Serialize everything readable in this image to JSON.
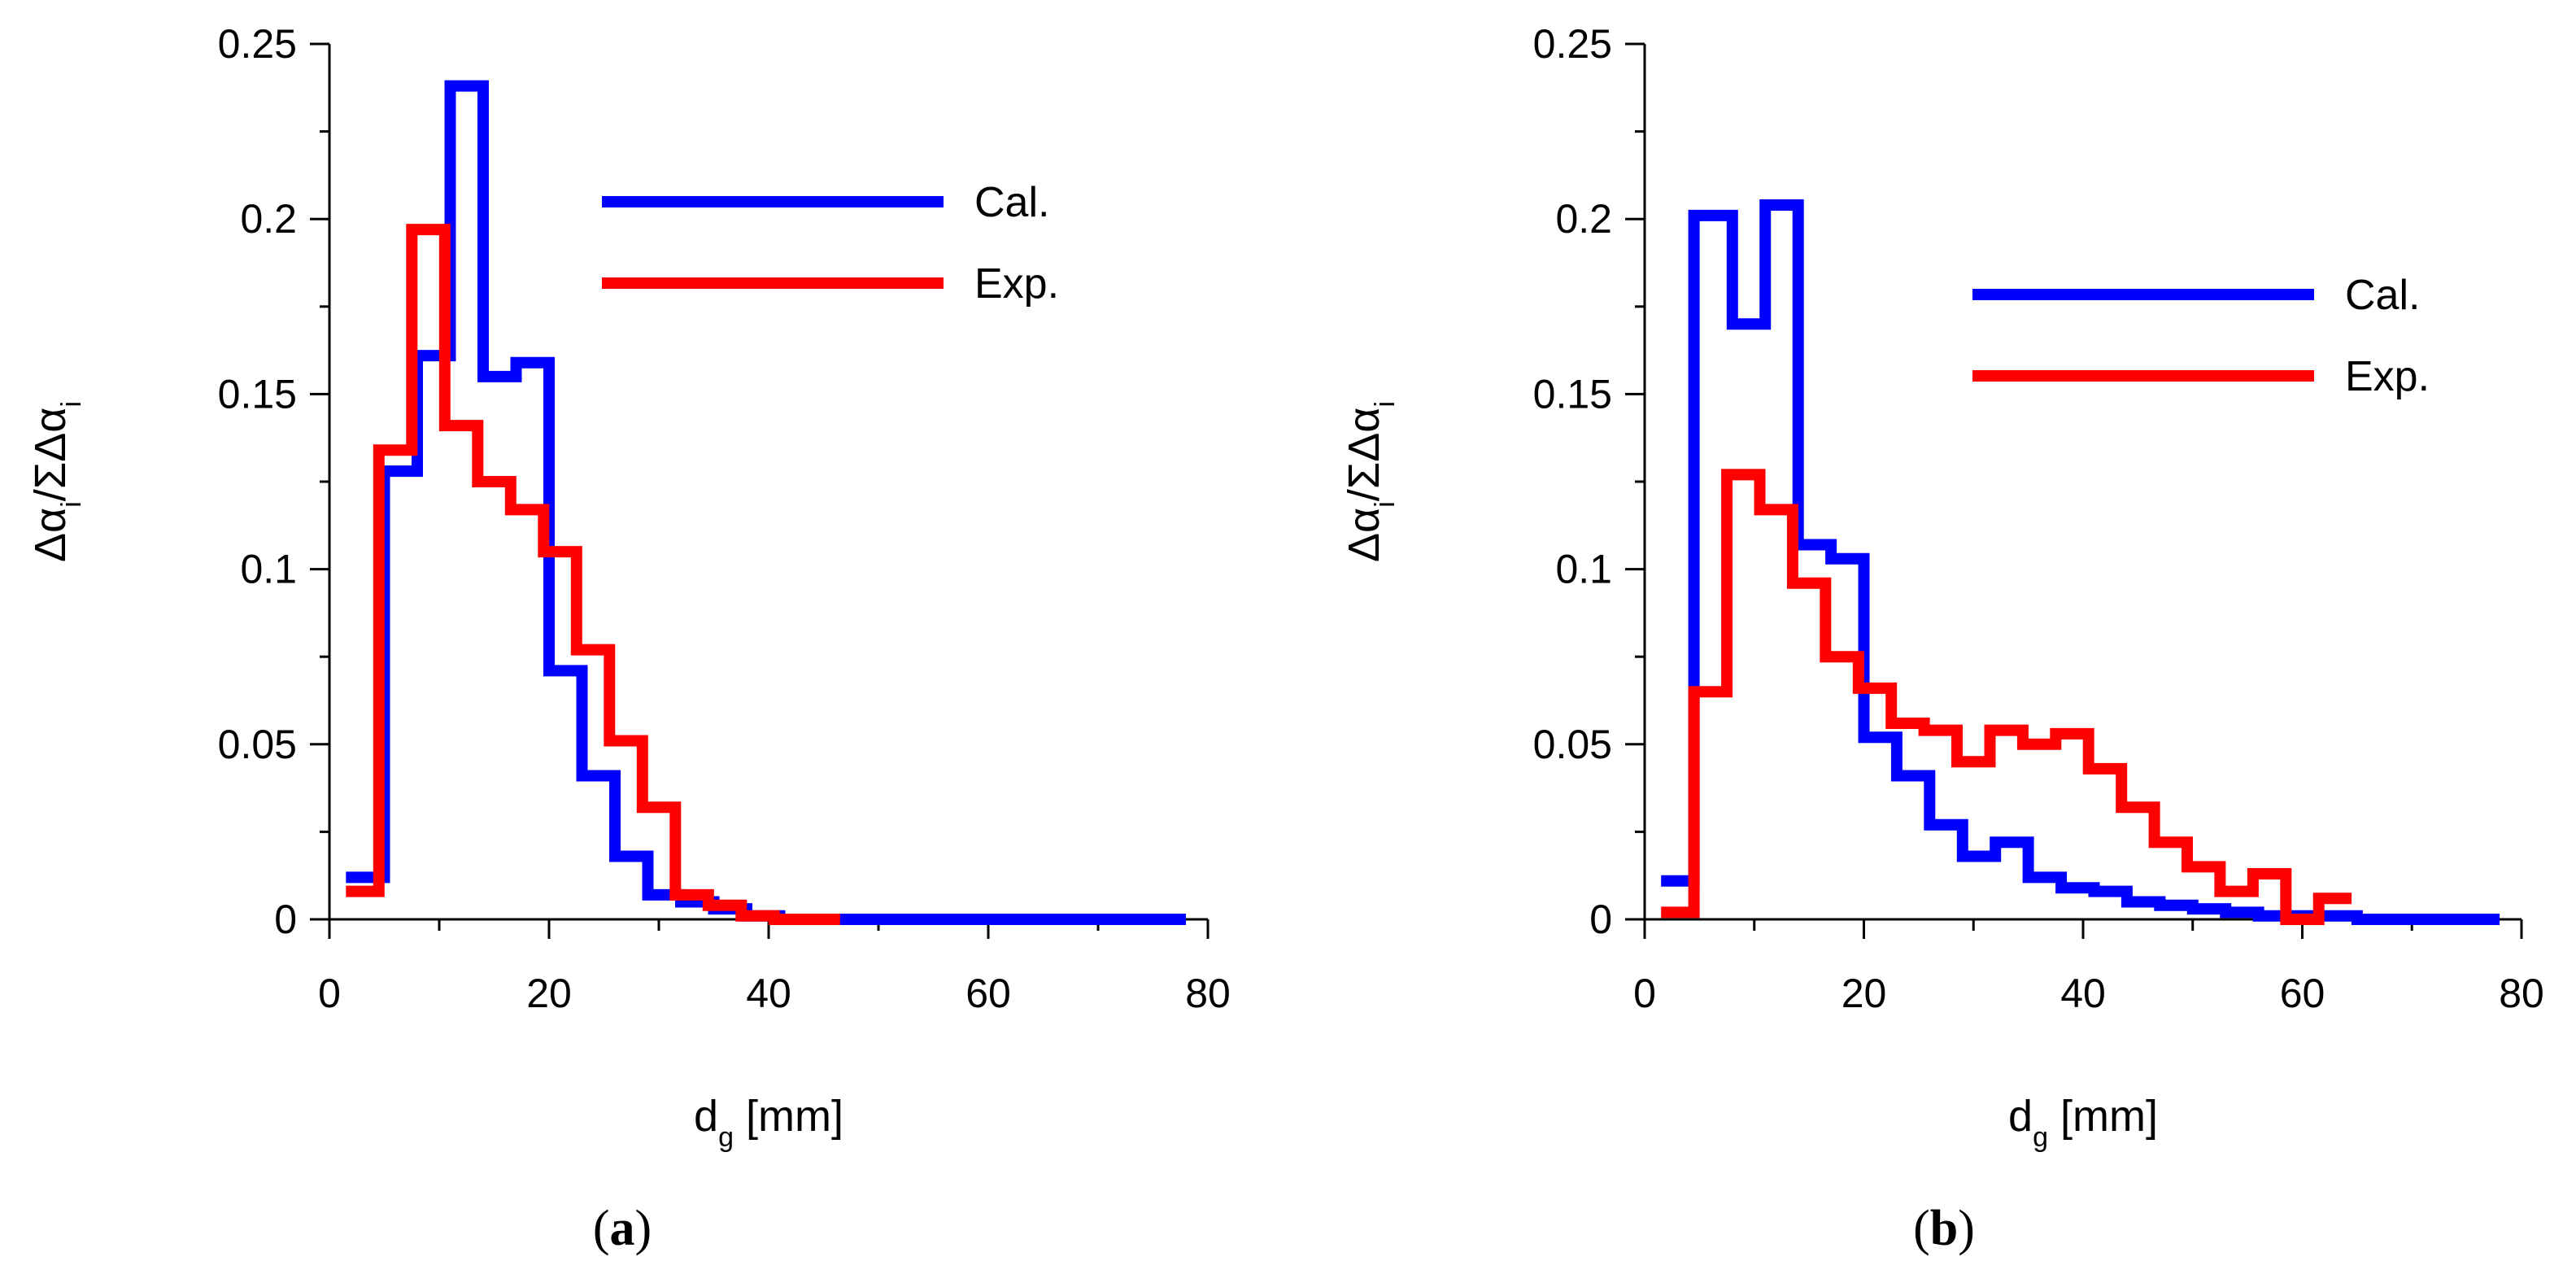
{
  "chart_data": [
    {
      "type": "line",
      "step": true,
      "panel_label": "a",
      "xlabel": "d",
      "xlabel_sub": "g",
      "xlabel_unit": " [mm]",
      "ylabel": "Δα/ΣΔα",
      "ylabel_parts": [
        "Δα",
        "i",
        "/ΣΔα",
        "i"
      ],
      "xlim": [
        0,
        80
      ],
      "ylim": [
        0,
        0.25
      ],
      "xticks": [
        0,
        20,
        40,
        60,
        80
      ],
      "yticks": [
        0,
        0.05,
        0.1,
        0.15,
        0.2,
        0.25
      ],
      "xtick_labels": [
        "0",
        "20",
        "40",
        "60",
        "80"
      ],
      "ytick_labels": [
        "0",
        "0.05",
        "0.1",
        "0.15",
        "0.2",
        "0.25"
      ],
      "legend": {
        "position": "upper-right"
      },
      "series": [
        {
          "name": "Cal.",
          "color": "#0000ff",
          "edges": [
            1.5,
            5,
            8,
            11,
            14,
            17,
            20,
            23,
            26,
            29,
            32,
            35,
            38,
            41,
            44,
            47,
            50,
            53,
            56,
            59,
            62,
            65,
            68,
            71,
            74,
            78
          ],
          "values": [
            0.012,
            0.128,
            0.161,
            0.238,
            0.155,
            0.159,
            0.071,
            0.041,
            0.018,
            0.007,
            0.005,
            0.003,
            0.001,
            0.0,
            0.0,
            0.0,
            0.0,
            0.0,
            0.0,
            0.0,
            0.0,
            0.0,
            0.0,
            0.0,
            0.0
          ]
        },
        {
          "name": "Exp.",
          "color": "#ff0000",
          "edges": [
            1.5,
            4.5,
            7.5,
            10.5,
            13.5,
            16.5,
            19.5,
            22.5,
            25.5,
            28.5,
            31.5,
            34.5,
            37.5,
            40.5,
            43.5,
            46.5
          ],
          "values": [
            0.008,
            0.134,
            0.197,
            0.141,
            0.125,
            0.117,
            0.105,
            0.077,
            0.051,
            0.032,
            0.007,
            0.004,
            0.001,
            0.0,
            0.0
          ]
        }
      ]
    },
    {
      "type": "line",
      "step": true,
      "panel_label": "b",
      "xlabel": "d",
      "xlabel_sub": "g",
      "xlabel_unit": " [mm]",
      "ylabel": "Δα/ΣΔα",
      "ylabel_parts": [
        "Δα",
        "i",
        "/ΣΔα",
        "i"
      ],
      "xlim": [
        0,
        80
      ],
      "ylim": [
        0,
        0.25
      ],
      "xticks": [
        0,
        20,
        40,
        60,
        80
      ],
      "yticks": [
        0,
        0.05,
        0.1,
        0.15,
        0.2,
        0.25
      ],
      "xtick_labels": [
        "0",
        "20",
        "40",
        "60",
        "80"
      ],
      "ytick_labels": [
        "0",
        "0.05",
        "0.1",
        "0.15",
        "0.2",
        "0.25"
      ],
      "legend": {
        "position": "upper-right"
      },
      "series": [
        {
          "name": "Cal.",
          "color": "#0000ff",
          "edges": [
            1.5,
            4.5,
            8,
            11,
            14,
            17,
            20,
            23,
            26,
            29,
            32,
            35,
            38,
            41,
            44,
            47,
            50,
            53,
            56,
            59,
            62,
            65,
            68,
            71,
            74,
            78
          ],
          "values": [
            0.011,
            0.201,
            0.17,
            0.204,
            0.107,
            0.103,
            0.052,
            0.041,
            0.027,
            0.018,
            0.022,
            0.012,
            0.009,
            0.008,
            0.005,
            0.004,
            0.003,
            0.002,
            0.001,
            0.001,
            0.001,
            0.0,
            0.0,
            0.0,
            0.0
          ]
        },
        {
          "name": "Exp.",
          "color": "#ff0000",
          "edges": [
            1.5,
            4.5,
            7.5,
            10.5,
            13.5,
            16.5,
            19.5,
            22.5,
            25.5,
            28.5,
            31.5,
            34.5,
            37.5,
            40.5,
            43.5,
            46.5,
            49.5,
            52.5,
            55.5,
            58.5,
            61.5,
            64.5
          ],
          "values": [
            0.002,
            0.065,
            0.127,
            0.117,
            0.096,
            0.075,
            0.066,
            0.056,
            0.054,
            0.045,
            0.054,
            0.05,
            0.053,
            0.043,
            0.032,
            0.022,
            0.015,
            0.008,
            0.013,
            0.0,
            0.006
          ]
        }
      ]
    }
  ]
}
